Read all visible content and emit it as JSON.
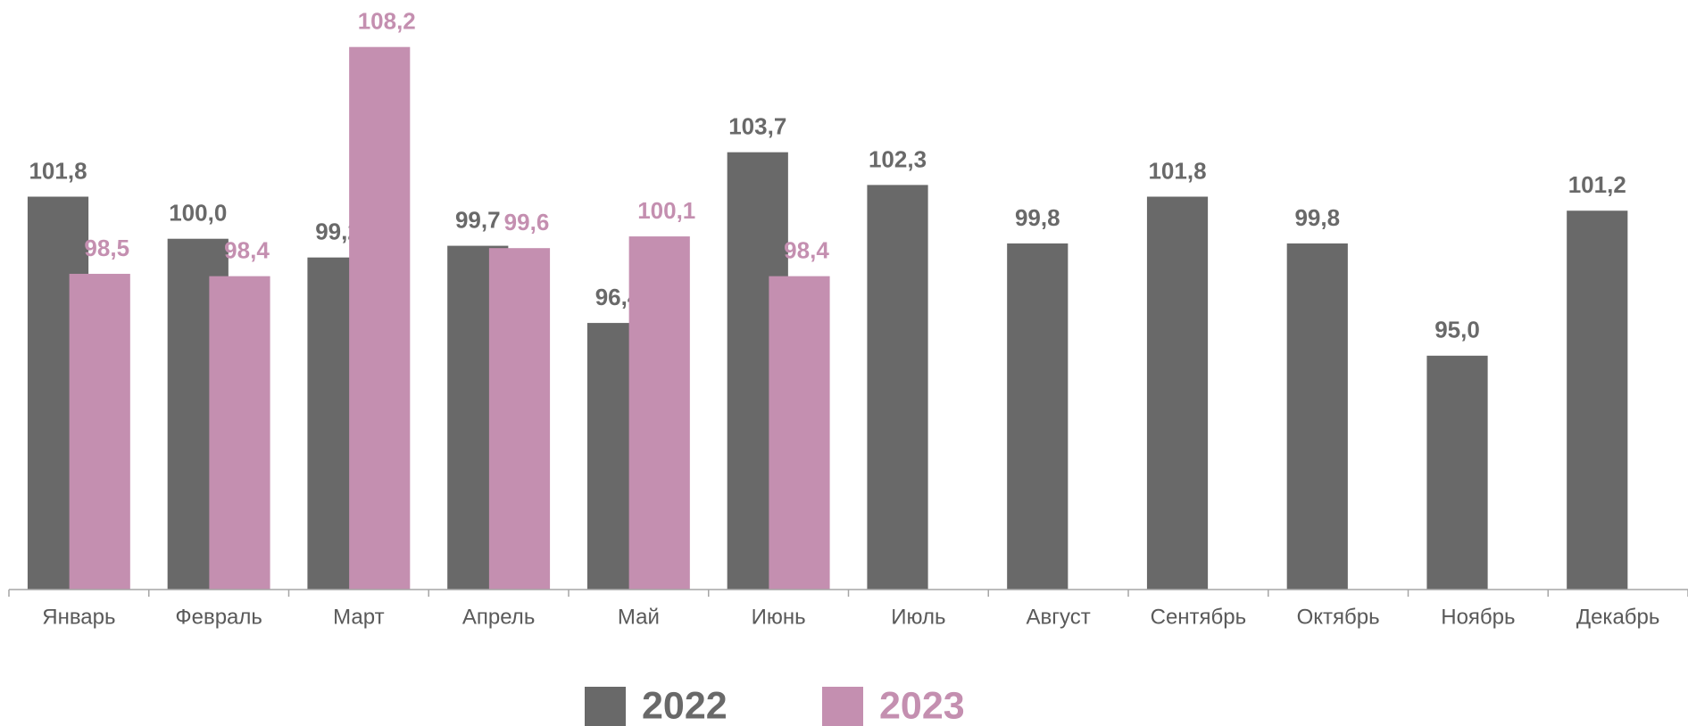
{
  "chart_data": {
    "type": "bar",
    "categories": [
      "Январь",
      "Февраль",
      "Март",
      "Апрель",
      "Май",
      "Июнь",
      "Июль",
      "Август",
      "Сентябрь",
      "Октябрь",
      "Ноябрь",
      "Декабрь"
    ],
    "series": [
      {
        "name": "2022",
        "color": "#696969",
        "values": [
          101.8,
          100.0,
          99.2,
          99.7,
          96.4,
          103.7,
          102.3,
          99.8,
          101.8,
          99.8,
          95.0,
          101.2
        ],
        "value_labels": [
          "101,8",
          "100,0",
          "99,2",
          "99,7",
          "96,4",
          "103,7",
          "102,3",
          "99,8",
          "101,8",
          "99,8",
          "95,0",
          "101,2"
        ]
      },
      {
        "name": "2023",
        "color": "#c48fb0",
        "values": [
          98.5,
          98.4,
          108.2,
          99.6,
          100.1,
          98.4,
          null,
          null,
          null,
          null,
          null,
          null
        ],
        "value_labels": [
          "98,5",
          "98,4",
          "108,2",
          "99,6",
          "100,1",
          "98,4",
          null,
          null,
          null,
          null,
          null,
          null
        ]
      }
    ],
    "ylim": [
      85,
      110
    ],
    "legend": "bottom"
  }
}
